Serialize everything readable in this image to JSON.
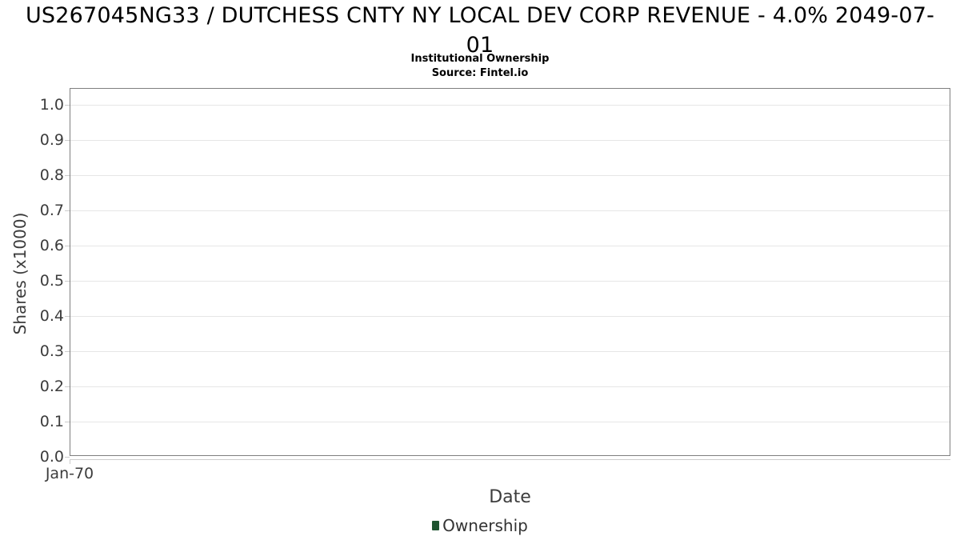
{
  "title": {
    "lines": [
      "US267045NG33 / DUTCHESS CNTY NY LOCAL DEV CORP REVENUE - 4.0% 2049-07-",
      "01"
    ]
  },
  "subtitle": "Institutional Ownership",
  "source": "Source: Fintel.io",
  "y_axis": {
    "title": "Shares (x1000)",
    "labels": [
      "1.0",
      "0.9",
      "0.8",
      "0.7",
      "0.6",
      "0.5",
      "0.4",
      "0.3",
      "0.2",
      "0.1",
      "0.0"
    ]
  },
  "x_axis": {
    "title": "Date",
    "labels": [
      "Jan-70"
    ]
  },
  "legend": {
    "items": [
      {
        "label": "Ownership",
        "color": "#1f5430"
      }
    ]
  },
  "colors": {
    "title_text": "#000000",
    "axis_text": "#3c3c3c",
    "legend_text": "#333333",
    "gridline": "#e6e6e6",
    "plot_border": "#7f7f7f",
    "axis_line": "#cccccc",
    "series_green": "#1f5430"
  },
  "chart_data": {
    "type": "bar",
    "title": "US267045NG33 / DUTCHESS CNTY NY LOCAL DEV CORP REVENUE - 4.0% 2049-07-01",
    "subtitle": "Institutional Ownership",
    "annotation": "Source: Fintel.io",
    "xlabel": "Date",
    "ylabel": "Shares (x1000)",
    "x_tick_labels": [
      "Jan-70"
    ],
    "ylim": [
      0.0,
      1.045
    ],
    "y_tick_interval": 0.1,
    "grid": true,
    "legend_position": "bottom-center",
    "series": [
      {
        "name": "Ownership",
        "color": "#1f5430",
        "x": [],
        "values": []
      }
    ]
  }
}
